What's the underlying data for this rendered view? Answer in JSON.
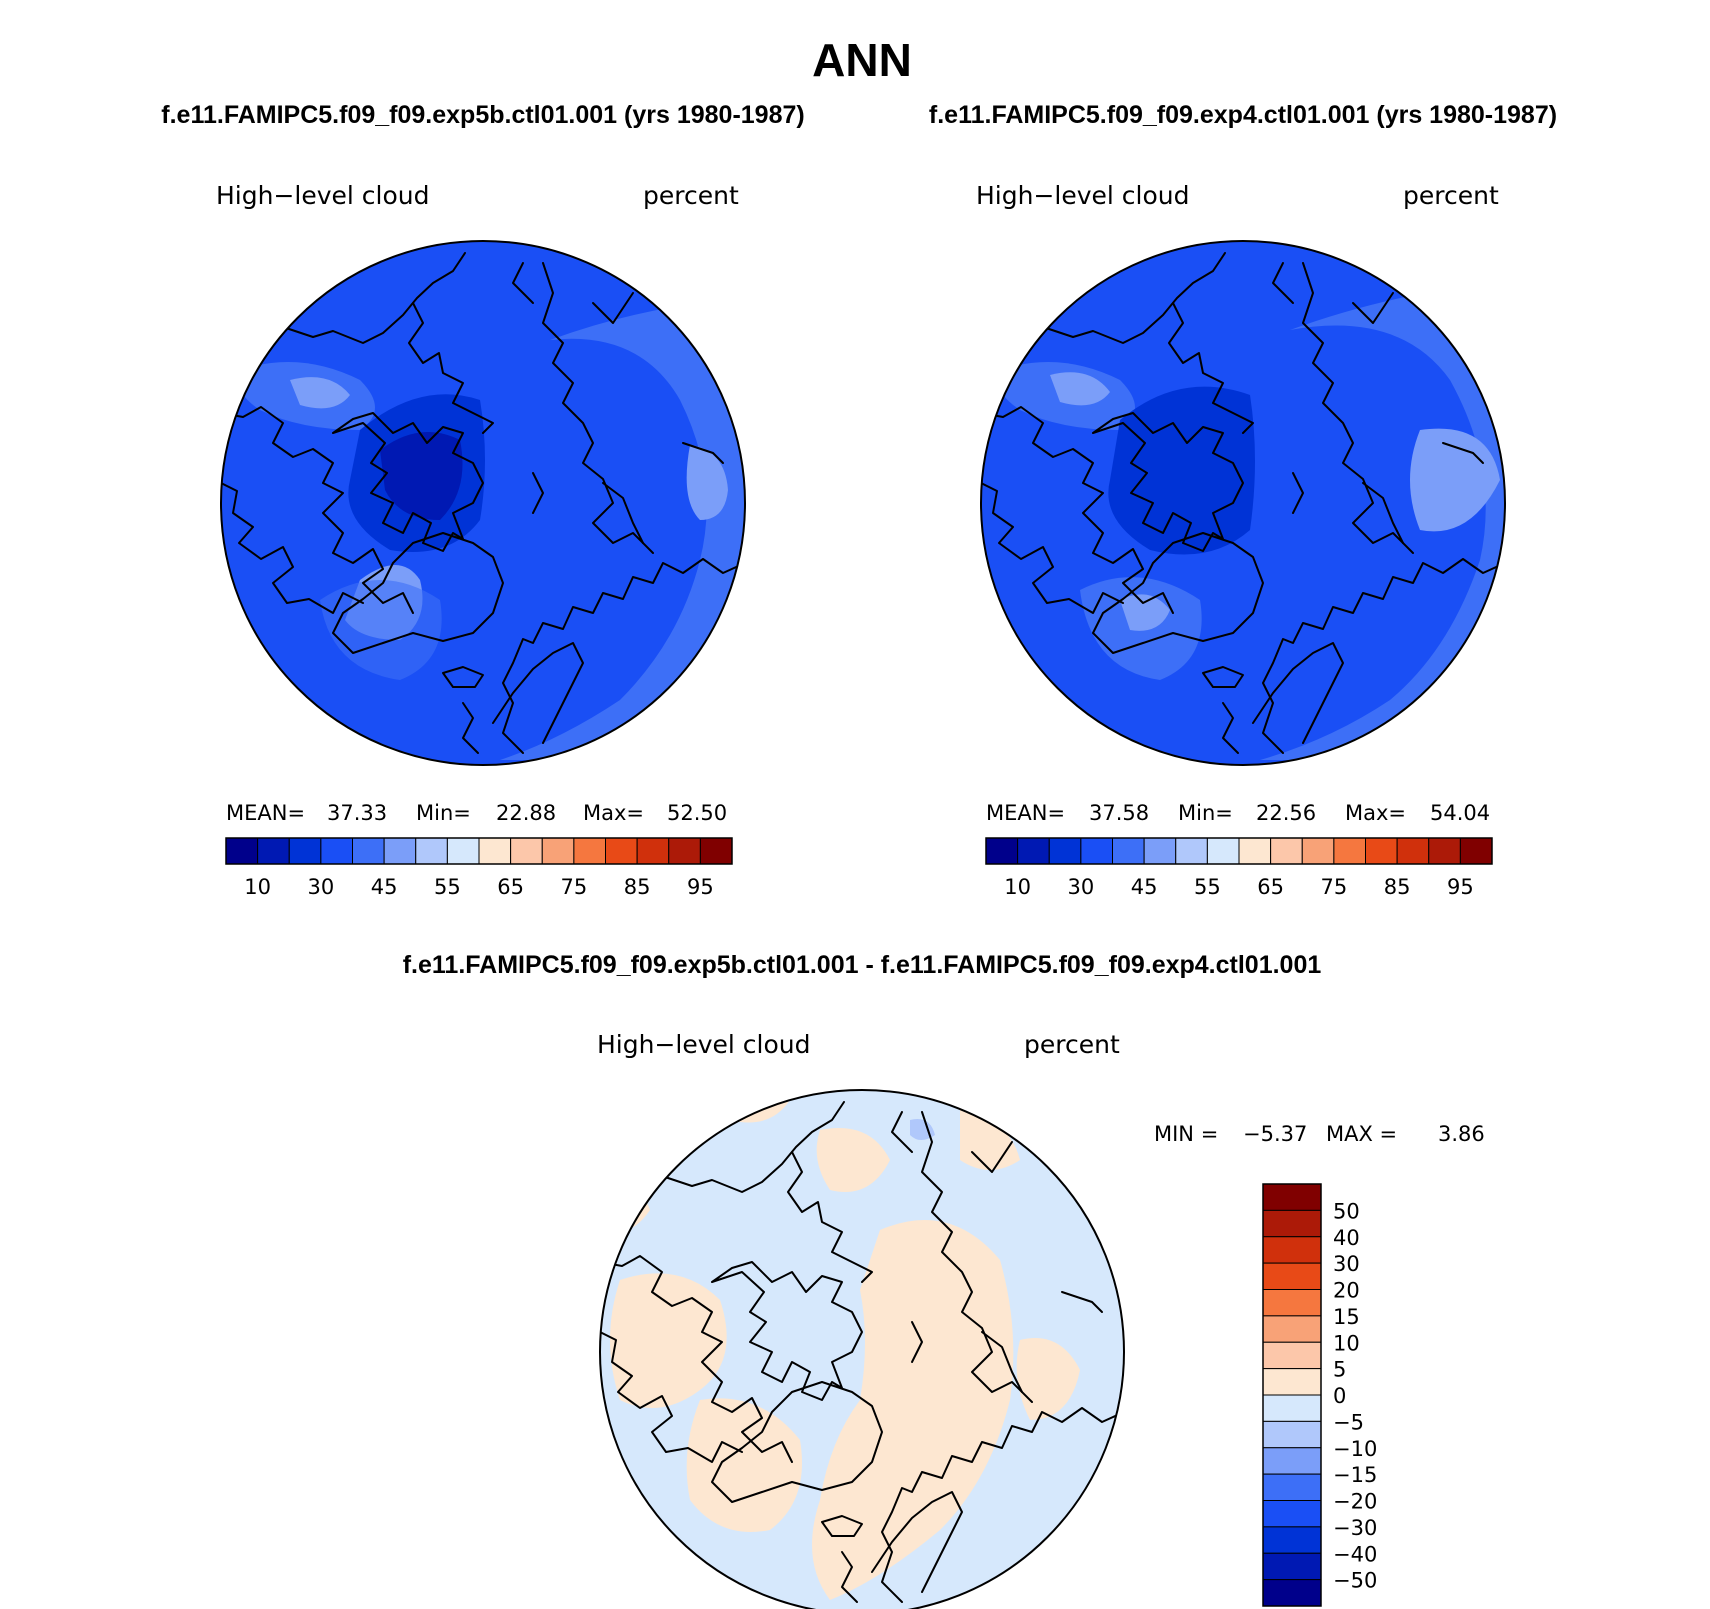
{
  "season": "ANN",
  "panels": [
    {
      "case_title": "f.e11.FAMIPC5.f09_f09.exp5b.ctl01.001 (yrs 1980-1987)",
      "variable": "High−level cloud",
      "units": "percent",
      "stats": {
        "mean_label": "MEAN=",
        "mean": "37.33",
        "min_label": "Min=",
        "min": "22.88",
        "max_label": "Max=",
        "max": "52.50"
      }
    },
    {
      "case_title": "f.e11.FAMIPC5.f09_f09.exp4.ctl01.001 (yrs 1980-1987)",
      "variable": "High−level cloud",
      "units": "percent",
      "stats": {
        "mean_label": "MEAN=",
        "mean": "37.58",
        "min_label": "Min=",
        "min": "22.56",
        "max_label": "Max=",
        "max": "54.04"
      }
    }
  ],
  "diff": {
    "title": "f.e11.FAMIPC5.f09_f09.exp5b.ctl01.001 - f.e11.FAMIPC5.f09_f09.exp4.ctl01.001",
    "variable": "High−level cloud",
    "units": "percent",
    "stats": {
      "min_label": "MIN =",
      "min": "−5.37",
      "max_label": "MAX =",
      "max": "3.86"
    }
  },
  "colorbar_abs": {
    "colors": [
      "#00008b",
      "#0019b3",
      "#0033d6",
      "#1a4ff5",
      "#3d6ff7",
      "#7b9ef9",
      "#b0c8fb",
      "#d6e8fc",
      "#fde7d1",
      "#fcc7aa",
      "#f8a277",
      "#f5773f",
      "#e84a17",
      "#d0300c",
      "#ac1a08",
      "#800000"
    ],
    "labels": [
      "10",
      "30",
      "45",
      "55",
      "65",
      "75",
      "85",
      "95"
    ]
  },
  "colorbar_diff": {
    "colors": [
      "#00008b",
      "#0019b3",
      "#0033d6",
      "#1a4ff5",
      "#3d6ff7",
      "#7b9ef9",
      "#b0c8fb",
      "#d6e8fc",
      "#fde7d1",
      "#fcc7aa",
      "#f8a277",
      "#f5773f",
      "#e84a17",
      "#d0300c",
      "#ac1a08",
      "#800000"
    ],
    "labels": [
      "50",
      "40",
      "30",
      "20",
      "15",
      "10",
      "5",
      "0",
      "−5",
      "−10",
      "−15",
      "−20",
      "−30",
      "−40",
      "−50"
    ]
  },
  "map_colors": {
    "p1_base": "#1a4ff5",
    "p1_dark": "#0033d6",
    "p1_darker": "#0019b3",
    "p1_light": "#3d6ff7",
    "p1_lighter": "#7b9ef9",
    "p2_base": "#1a4ff5",
    "p2_dark": "#0033d6",
    "p2_light": "#3d6ff7",
    "p2_lighter": "#7b9ef9",
    "diff_neg": "#d6e8fc",
    "diff_pos": "#fde7d1",
    "diff_neg2": "#b0c8fb"
  }
}
